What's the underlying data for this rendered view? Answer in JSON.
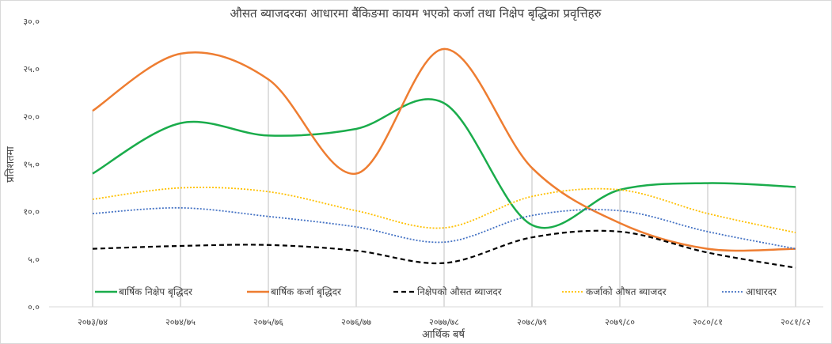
{
  "chart_data": {
    "type": "line",
    "title": "औसत ब्याजदरका आधारमा बैंकिङमा कायम भएको कर्जा तथा निक्षेप बृद्धिका प्रवृत्तिहरु",
    "xlabel": "आर्थिक बर्ष",
    "ylabel": "प्रतिशतमा",
    "ylim": [
      0,
      30
    ],
    "yticks": [
      "०.०",
      "५.०",
      "१०.०",
      "१५.०",
      "२०.०",
      "२५.०",
      "३०.०"
    ],
    "categories": [
      "२०७३/७४",
      "२०७४/७५",
      "२०७५/७६",
      "२०७६/७७",
      "२०७७/७८",
      "२०७८/७९",
      "२०७९/८०",
      "२०८०/८१",
      "२०८१/८२"
    ],
    "smooth": true,
    "drop_lines": true,
    "legend_position": "bottom-inside",
    "series": [
      {
        "name": "बार्षिक निक्षेप बृद्धिदर",
        "color": "#1aac4b",
        "style": "solid",
        "values": [
          14.0,
          19.3,
          18.0,
          18.7,
          21.4,
          8.6,
          12.3,
          13.0,
          12.6
        ]
      },
      {
        "name": "बार्षिक कर्जा बृद्धिदर",
        "color": "#ee7d31",
        "style": "solid",
        "values": [
          20.6,
          26.6,
          23.9,
          14.0,
          27.1,
          14.6,
          8.8,
          6.1,
          6.1
        ]
      },
      {
        "name": "निक्षेपको औसत ब्याजदर",
        "color": "#000000",
        "style": "dashed",
        "values": [
          6.1,
          6.4,
          6.5,
          5.9,
          4.6,
          7.3,
          7.9,
          5.7,
          4.1
        ]
      },
      {
        "name": "कर्जाको औषत ब्याजदर",
        "color": "#ffc000",
        "style": "dotted",
        "values": [
          11.3,
          12.5,
          12.1,
          10.1,
          8.3,
          11.6,
          12.3,
          9.8,
          7.8
        ]
      },
      {
        "name": "आधारदर",
        "color": "#4472c4",
        "style": "dotted",
        "values": [
          9.8,
          10.4,
          9.5,
          8.4,
          6.8,
          9.6,
          10.1,
          7.9,
          6.1
        ]
      }
    ]
  }
}
